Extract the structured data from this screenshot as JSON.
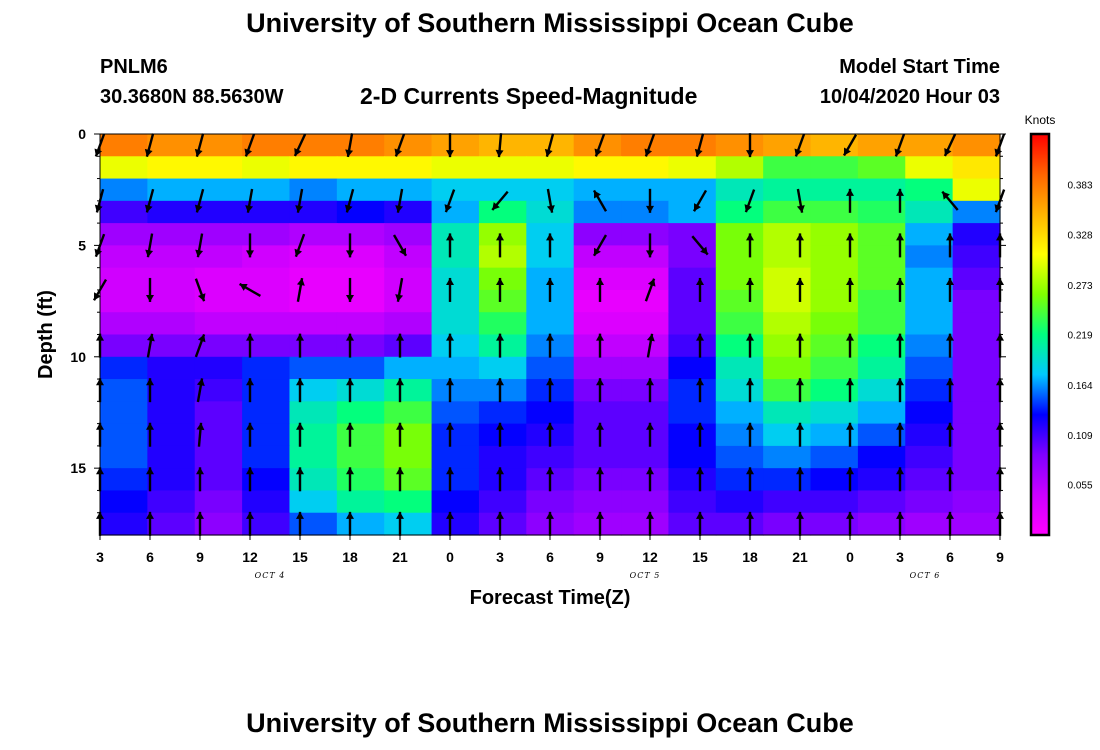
{
  "header": {
    "title": "University of Southern Mississippi Ocean Cube",
    "station": "PNLM6",
    "coordinates": "30.3680N 88.5630W",
    "subtitle": "2-D Currents Speed-Magnitude",
    "model_start_label": "Model Start Time",
    "model_start_value": "10/04/2020 Hour 03"
  },
  "footer": {
    "title": "University of Southern Mississippi Ocean Cube"
  },
  "chart_data": {
    "type": "heatmap",
    "xlabel": "Forecast Time(Z)",
    "ylabel": "Depth (ft)",
    "x_tick_labels": [
      "3",
      "6",
      "9",
      "12",
      "15",
      "18",
      "21",
      "0",
      "3",
      "6",
      "9",
      "12",
      "15",
      "18",
      "21",
      "0",
      "3",
      "6",
      "9"
    ],
    "date_labels": [
      {
        "text": "OCT 4",
        "tick_index": 3.4
      },
      {
        "text": "OCT 5",
        "tick_index": 10.9
      },
      {
        "text": "OCT 6",
        "tick_index": 16.5
      }
    ],
    "y_ticks": [
      0,
      5,
      10,
      15
    ],
    "ylim": [
      18,
      0
    ],
    "colorbar": {
      "unit": "Knots",
      "tick_labels": [
        "0.383",
        "0.328",
        "0.273",
        "0.219",
        "0.164",
        "0.109",
        "0.055"
      ],
      "range": [
        0,
        0.438
      ],
      "colors": [
        "#ff00ff",
        "#cc00ff",
        "#8000ff",
        "#0000ff",
        "#00c8ff",
        "#00ff80",
        "#80ff00",
        "#ffff00",
        "#ffb400",
        "#ff6400",
        "#ff0000"
      ]
    },
    "time_hours": [
      0,
      3,
      6,
      9,
      12,
      15,
      18,
      21,
      24,
      27,
      30,
      33,
      36,
      39,
      42,
      45,
      48,
      51,
      54
    ],
    "depths_ft": [
      0.5,
      1.5,
      2.5,
      3.5,
      4.5,
      5.5,
      6.5,
      7.5,
      8.5,
      9.5,
      10.5,
      11.5,
      12.5,
      13.5,
      14.5,
      15.5,
      16.5,
      17.5
    ],
    "speed_knots": [
      [
        0.38,
        0.37,
        0.37,
        0.38,
        0.38,
        0.38,
        0.37,
        0.36,
        0.35,
        0.35,
        0.37,
        0.38,
        0.38,
        0.37,
        0.36,
        0.35,
        0.36,
        0.36,
        0.37
      ],
      [
        0.3,
        0.31,
        0.31,
        0.3,
        0.31,
        0.31,
        0.31,
        0.3,
        0.3,
        0.3,
        0.31,
        0.31,
        0.3,
        0.28,
        0.24,
        0.24,
        0.25,
        0.3,
        0.32
      ],
      [
        0.16,
        0.17,
        0.17,
        0.17,
        0.16,
        0.17,
        0.17,
        0.18,
        0.18,
        0.18,
        0.17,
        0.17,
        0.17,
        0.2,
        0.21,
        0.21,
        0.21,
        0.22,
        0.3
      ],
      [
        0.11,
        0.12,
        0.12,
        0.12,
        0.12,
        0.13,
        0.12,
        0.17,
        0.22,
        0.19,
        0.16,
        0.16,
        0.17,
        0.22,
        0.24,
        0.24,
        0.23,
        0.2,
        0.16
      ],
      [
        0.07,
        0.07,
        0.07,
        0.07,
        0.06,
        0.06,
        0.07,
        0.2,
        0.27,
        0.18,
        0.08,
        0.08,
        0.09,
        0.26,
        0.28,
        0.27,
        0.25,
        0.17,
        0.12
      ],
      [
        0.05,
        0.05,
        0.05,
        0.04,
        0.03,
        0.03,
        0.05,
        0.2,
        0.28,
        0.18,
        0.05,
        0.05,
        0.09,
        0.26,
        0.28,
        0.27,
        0.25,
        0.16,
        0.11
      ],
      [
        0.04,
        0.04,
        0.03,
        0.03,
        0.02,
        0.02,
        0.04,
        0.19,
        0.26,
        0.17,
        0.03,
        0.03,
        0.1,
        0.26,
        0.29,
        0.27,
        0.25,
        0.17,
        0.1
      ],
      [
        0.04,
        0.04,
        0.03,
        0.03,
        0.02,
        0.02,
        0.04,
        0.19,
        0.25,
        0.17,
        0.02,
        0.02,
        0.1,
        0.25,
        0.29,
        0.27,
        0.24,
        0.17,
        0.09
      ],
      [
        0.06,
        0.06,
        0.05,
        0.05,
        0.05,
        0.05,
        0.06,
        0.19,
        0.23,
        0.17,
        0.03,
        0.03,
        0.1,
        0.24,
        0.28,
        0.26,
        0.24,
        0.17,
        0.09
      ],
      [
        0.09,
        0.09,
        0.09,
        0.09,
        0.09,
        0.09,
        0.1,
        0.18,
        0.21,
        0.16,
        0.05,
        0.05,
        0.11,
        0.22,
        0.27,
        0.25,
        0.22,
        0.16,
        0.09
      ],
      [
        0.14,
        0.12,
        0.12,
        0.14,
        0.15,
        0.15,
        0.17,
        0.17,
        0.18,
        0.15,
        0.07,
        0.07,
        0.13,
        0.2,
        0.26,
        0.24,
        0.21,
        0.15,
        0.09
      ],
      [
        0.15,
        0.12,
        0.11,
        0.14,
        0.18,
        0.19,
        0.21,
        0.16,
        0.16,
        0.14,
        0.09,
        0.09,
        0.14,
        0.19,
        0.24,
        0.22,
        0.19,
        0.14,
        0.09
      ],
      [
        0.15,
        0.12,
        0.1,
        0.14,
        0.2,
        0.22,
        0.24,
        0.15,
        0.14,
        0.13,
        0.1,
        0.1,
        0.14,
        0.17,
        0.2,
        0.19,
        0.17,
        0.13,
        0.09
      ],
      [
        0.15,
        0.12,
        0.1,
        0.14,
        0.21,
        0.24,
        0.26,
        0.14,
        0.13,
        0.12,
        0.1,
        0.1,
        0.13,
        0.16,
        0.18,
        0.17,
        0.15,
        0.12,
        0.09
      ],
      [
        0.15,
        0.12,
        0.1,
        0.14,
        0.21,
        0.24,
        0.26,
        0.14,
        0.12,
        0.11,
        0.1,
        0.1,
        0.13,
        0.15,
        0.16,
        0.15,
        0.13,
        0.11,
        0.09
      ],
      [
        0.14,
        0.12,
        0.1,
        0.13,
        0.2,
        0.23,
        0.25,
        0.14,
        0.12,
        0.1,
        0.09,
        0.09,
        0.12,
        0.14,
        0.14,
        0.13,
        0.12,
        0.1,
        0.09
      ],
      [
        0.13,
        0.11,
        0.09,
        0.12,
        0.18,
        0.21,
        0.22,
        0.13,
        0.11,
        0.09,
        0.08,
        0.08,
        0.11,
        0.12,
        0.11,
        0.11,
        0.1,
        0.09,
        0.08
      ],
      [
        0.12,
        0.1,
        0.08,
        0.11,
        0.15,
        0.17,
        0.18,
        0.12,
        0.1,
        0.08,
        0.07,
        0.07,
        0.1,
        0.1,
        0.09,
        0.09,
        0.08,
        0.07,
        0.07
      ]
    ],
    "vector_rows": [
      {
        "depth_ft": 0.5,
        "angles_deg": [
          200,
          195,
          195,
          200,
          205,
          190,
          200,
          180,
          185,
          195,
          200,
          200,
          195,
          180,
          200,
          210,
          200,
          205,
          200
        ]
      },
      {
        "depth_ft": 3.0,
        "angles_deg": [
          195,
          195,
          195,
          190,
          190,
          195,
          190,
          200,
          220,
          170,
          330,
          180,
          210,
          200,
          170,
          0,
          0,
          320,
          200
        ]
      },
      {
        "depth_ft": 5.0,
        "angles_deg": [
          200,
          190,
          190,
          180,
          200,
          180,
          150,
          0,
          0,
          0,
          210,
          180,
          140,
          0,
          0,
          0,
          0,
          0,
          0
        ]
      },
      {
        "depth_ft": 7.0,
        "angles_deg": [
          210,
          180,
          160,
          300,
          10,
          180,
          190,
          0,
          0,
          0,
          0,
          20,
          0,
          0,
          0,
          0,
          0,
          0,
          0
        ]
      },
      {
        "depth_ft": 9.5,
        "angles_deg": [
          0,
          10,
          20,
          0,
          0,
          0,
          0,
          0,
          0,
          0,
          0,
          10,
          0,
          0,
          0,
          0,
          0,
          0,
          0
        ]
      },
      {
        "depth_ft": 11.5,
        "angles_deg": [
          0,
          0,
          10,
          0,
          0,
          0,
          0,
          0,
          0,
          0,
          0,
          0,
          0,
          0,
          0,
          0,
          0,
          0,
          0
        ]
      },
      {
        "depth_ft": 13.5,
        "angles_deg": [
          0,
          0,
          5,
          0,
          0,
          0,
          0,
          0,
          0,
          0,
          0,
          0,
          0,
          0,
          0,
          0,
          0,
          0,
          0
        ]
      },
      {
        "depth_ft": 15.5,
        "angles_deg": [
          0,
          0,
          0,
          0,
          0,
          0,
          0,
          0,
          0,
          0,
          0,
          0,
          0,
          0,
          0,
          0,
          0,
          0,
          0
        ]
      },
      {
        "depth_ft": 17.5,
        "angles_deg": [
          0,
          0,
          0,
          0,
          0,
          0,
          0,
          0,
          0,
          0,
          0,
          0,
          0,
          0,
          0,
          0,
          0,
          0,
          0
        ]
      }
    ]
  }
}
